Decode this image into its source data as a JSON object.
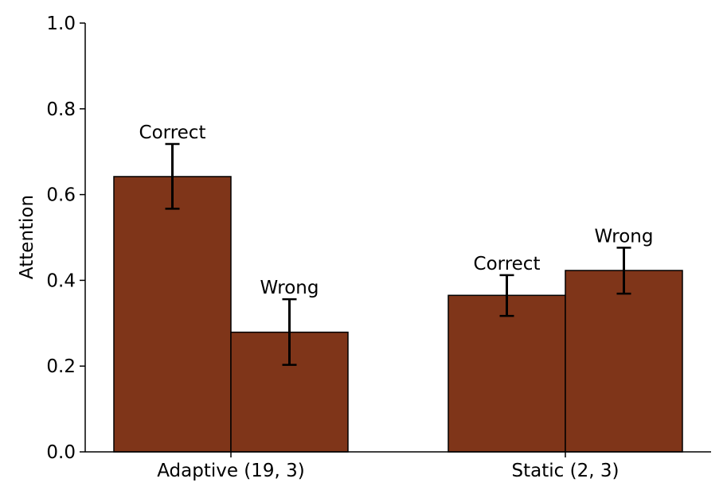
{
  "chart_data": {
    "type": "bar",
    "title": "",
    "xlabel": "",
    "ylabel": "Attention",
    "ylim": [
      0,
      1.0
    ],
    "yticks": [
      "0.0",
      "0.2",
      "0.4",
      "0.6",
      "0.8",
      "1.0"
    ],
    "categories": [
      "Adaptive (19, 3)",
      "Static (2, 3)"
    ],
    "series": [
      {
        "labels": [
          "Correct",
          "Correct"
        ],
        "values": [
          0.642,
          0.365
        ],
        "error_low": [
          0.567,
          0.317
        ],
        "error_high": [
          0.718,
          0.412
        ]
      },
      {
        "labels": [
          "Wrong",
          "Wrong"
        ],
        "values": [
          0.279,
          0.423
        ],
        "error_low": [
          0.203,
          0.369
        ],
        "error_high": [
          0.356,
          0.476
        ]
      }
    ],
    "bar_color": "#7f3519",
    "edge_color": "#000000",
    "grid": false
  }
}
